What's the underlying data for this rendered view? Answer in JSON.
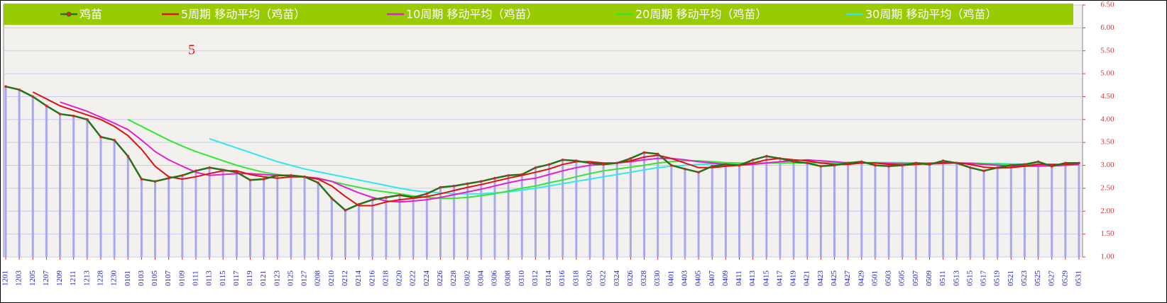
{
  "chart_data": {
    "type": "line",
    "annotation": "5",
    "categories": [
      "1201",
      "1203",
      "1205",
      "1207",
      "1209",
      "1211",
      "1213",
      "1228",
      "1230",
      "0101",
      "0103",
      "0105",
      "0107",
      "0109",
      "0111",
      "0113",
      "0115",
      "0117",
      "0119",
      "0121",
      "0123",
      "0125",
      "0127",
      "0208",
      "0210",
      "0212",
      "0214",
      "0216",
      "0218",
      "0220",
      "0222",
      "0224",
      "0226",
      "0228",
      "0302",
      "0304",
      "0306",
      "0308",
      "0310",
      "0312",
      "0314",
      "0316",
      "0318",
      "0320",
      "0322",
      "0324",
      "0326",
      "0328",
      "0330",
      "0401",
      "0403",
      "0405",
      "0407",
      "0409",
      "0411",
      "0413",
      "0415",
      "0417",
      "0419",
      "0421",
      "0423",
      "0425",
      "0427",
      "0429",
      "0501",
      "0503",
      "0505",
      "0507",
      "0509",
      "0511",
      "0513",
      "0515",
      "0517",
      "0519",
      "0521",
      "0523",
      "0525",
      "0527",
      "0529",
      "0531"
    ],
    "series": [
      {
        "name": "鸡苗",
        "color": "#2a6e1a",
        "marker_color": "#dd2222",
        "bar_color": "#a8a8f0",
        "values": [
          4.72,
          4.65,
          4.5,
          4.3,
          4.12,
          4.08,
          4.0,
          3.62,
          3.55,
          3.2,
          2.7,
          2.65,
          2.72,
          2.78,
          2.88,
          2.95,
          2.9,
          2.85,
          2.68,
          2.7,
          2.78,
          2.78,
          2.75,
          2.62,
          2.28,
          2.02,
          2.15,
          2.25,
          2.3,
          2.35,
          2.3,
          2.38,
          2.52,
          2.55,
          2.6,
          2.65,
          2.72,
          2.78,
          2.8,
          2.95,
          3.02,
          3.12,
          3.1,
          3.05,
          3.02,
          3.05,
          3.15,
          3.28,
          3.25,
          3.0,
          2.92,
          2.85,
          2.98,
          3.02,
          3.0,
          3.12,
          3.2,
          3.15,
          3.08,
          3.05,
          2.98,
          3.0,
          3.05,
          3.08,
          3.0,
          2.98,
          3.0,
          3.05,
          3.02,
          3.1,
          3.05,
          2.95,
          2.88,
          2.95,
          3.0,
          3.02,
          3.08,
          2.98,
          3.05,
          3.05
        ]
      },
      {
        "name": "5周期 移动平均（鸡苗）",
        "color": "#dd1111",
        "values": [
          null,
          null,
          4.6,
          4.45,
          4.3,
          4.2,
          4.1,
          4.0,
          3.85,
          3.65,
          3.35,
          2.98,
          2.75,
          2.7,
          2.75,
          2.82,
          2.88,
          2.88,
          2.8,
          2.75,
          2.72,
          2.75,
          2.75,
          2.7,
          2.55,
          2.32,
          2.12,
          2.12,
          2.2,
          2.25,
          2.28,
          2.32,
          2.38,
          2.45,
          2.52,
          2.58,
          2.65,
          2.72,
          2.78,
          2.85,
          2.92,
          3.02,
          3.08,
          3.08,
          3.05,
          3.05,
          3.1,
          3.18,
          3.22,
          3.15,
          3.05,
          2.95,
          2.95,
          2.98,
          3.0,
          3.05,
          3.12,
          3.15,
          3.12,
          3.1,
          3.05,
          3.02,
          3.02,
          3.05,
          3.05,
          3.02,
          3.0,
          3.02,
          3.04,
          3.06,
          3.06,
          3.02,
          2.96,
          2.94,
          2.95,
          2.98,
          3.02,
          3.02,
          3.02,
          3.04
        ]
      },
      {
        "name": "10周期 移动平均（鸡苗）",
        "color": "#e020d0",
        "values": [
          null,
          null,
          null,
          null,
          4.38,
          4.28,
          4.18,
          4.05,
          3.92,
          3.78,
          3.55,
          3.3,
          3.12,
          2.98,
          2.85,
          2.78,
          2.8,
          2.82,
          2.82,
          2.8,
          2.78,
          2.77,
          2.75,
          2.72,
          2.65,
          2.52,
          2.4,
          2.3,
          2.22,
          2.2,
          2.22,
          2.25,
          2.3,
          2.36,
          2.42,
          2.48,
          2.55,
          2.62,
          2.68,
          2.72,
          2.8,
          2.88,
          2.95,
          3.0,
          3.02,
          3.05,
          3.08,
          3.12,
          3.15,
          3.15,
          3.12,
          3.08,
          3.05,
          3.02,
          3.0,
          3.02,
          3.05,
          3.08,
          3.1,
          3.12,
          3.1,
          3.08,
          3.05,
          3.05,
          3.05,
          3.04,
          3.03,
          3.03,
          3.03,
          3.04,
          3.05,
          3.04,
          3.02,
          3.0,
          2.98,
          2.98,
          2.98,
          2.99,
          3.0,
          3.02
        ]
      },
      {
        "name": "20周期 移动平均（鸡苗）",
        "color": "#33e633",
        "values": [
          null,
          null,
          null,
          null,
          null,
          null,
          null,
          null,
          null,
          4.0,
          3.85,
          3.7,
          3.55,
          3.42,
          3.3,
          3.2,
          3.1,
          3.0,
          2.92,
          2.85,
          2.8,
          2.76,
          2.74,
          2.7,
          2.65,
          2.58,
          2.52,
          2.46,
          2.42,
          2.38,
          2.33,
          2.3,
          2.28,
          2.28,
          2.3,
          2.34,
          2.38,
          2.44,
          2.5,
          2.55,
          2.62,
          2.68,
          2.75,
          2.82,
          2.88,
          2.92,
          2.96,
          3.0,
          3.05,
          3.08,
          3.1,
          3.1,
          3.08,
          3.06,
          3.05,
          3.05,
          3.05,
          3.05,
          3.05,
          3.06,
          3.06,
          3.06,
          3.06,
          3.06,
          3.06,
          3.06,
          3.05,
          3.05,
          3.05,
          3.05,
          3.05,
          3.05,
          3.04,
          3.03,
          3.02,
          3.01,
          3.01,
          3.01,
          3.01,
          3.01
        ]
      },
      {
        "name": "30周期 移动平均（鸡苗）",
        "color": "#33e8e8",
        "values": [
          null,
          null,
          null,
          null,
          null,
          null,
          null,
          null,
          null,
          null,
          null,
          null,
          null,
          null,
          null,
          3.58,
          3.48,
          3.38,
          3.28,
          3.18,
          3.08,
          3.0,
          2.92,
          2.86,
          2.8,
          2.74,
          2.68,
          2.62,
          2.56,
          2.5,
          2.45,
          2.42,
          2.4,
          2.38,
          2.38,
          2.38,
          2.4,
          2.42,
          2.46,
          2.5,
          2.55,
          2.6,
          2.65,
          2.7,
          2.75,
          2.8,
          2.85,
          2.9,
          2.95,
          2.98,
          3.0,
          3.02,
          3.03,
          3.04,
          3.04,
          3.04,
          3.05,
          3.05,
          3.05,
          3.05,
          3.05,
          3.05,
          3.06,
          3.06,
          3.06,
          3.06,
          3.06,
          3.05,
          3.05,
          3.05,
          3.05,
          3.05,
          3.04,
          3.04,
          3.03,
          3.03,
          3.03,
          3.02,
          3.02,
          3.02
        ]
      }
    ],
    "ylim": [
      1.0,
      6.5
    ],
    "yticks": [
      {
        "value": 1.0,
        "label": "1.00"
      },
      {
        "value": 1.5,
        "label": "1.50"
      },
      {
        "value": 2.0,
        "label": "2.00"
      },
      {
        "value": 2.5,
        "label": "2.50"
      },
      {
        "value": 3.0,
        "label": "3.00"
      },
      {
        "value": 3.5,
        "label": "3.50"
      },
      {
        "value": 4.0,
        "label": "4.00"
      },
      {
        "value": 4.5,
        "label": "4.50"
      },
      {
        "value": 5.0,
        "label": "5.00"
      },
      {
        "value": 5.5,
        "label": "5.50"
      },
      {
        "value": 6.0,
        "label": "6.00"
      },
      {
        "value": 6.5,
        "label": "6.50"
      }
    ],
    "y_axis_side": "right",
    "grid": true,
    "legend_position": "top"
  }
}
